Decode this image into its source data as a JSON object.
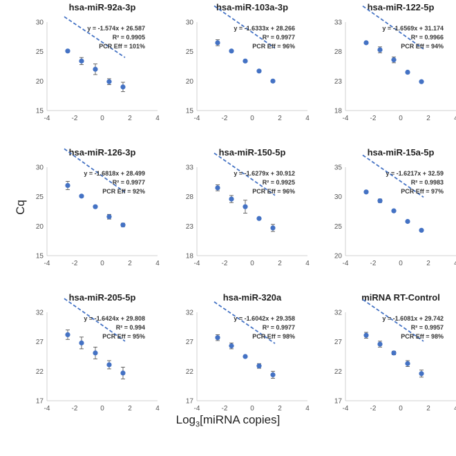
{
  "figure": {
    "ylabel": "Cq",
    "xlabel_prefix": "Log",
    "xlabel_sub": "3",
    "xlabel_suffix": "[miRNA copies]"
  },
  "chart_data": [
    {
      "type": "scatter",
      "title": "hsa-miR-92a-3p",
      "equation": "y = -1.574x + 26.587",
      "r2": "R² = 0.9905",
      "eff": "PCR Eff = 101%",
      "slope": -1.574,
      "intercept": 26.587,
      "xlim": [
        -4,
        4
      ],
      "ylim": [
        15,
        30
      ],
      "xticks": [
        -4,
        -2,
        0,
        2,
        4
      ],
      "yticks": [
        15,
        20,
        25,
        30
      ],
      "x": [
        -2.5,
        -1.5,
        -0.5,
        0.5,
        1.5
      ],
      "y": [
        25.1,
        23.4,
        22.0,
        19.9,
        19.0
      ],
      "err": [
        0.2,
        0.6,
        0.9,
        0.5,
        0.8
      ]
    },
    {
      "type": "scatter",
      "title": "hsa-miR-103a-3p",
      "equation": "y = -1.6333x + 28.266",
      "r2": "R² = 0.9977",
      "eff": "PCR Eff = 96%",
      "slope": -1.6333,
      "intercept": 28.266,
      "xlim": [
        -4,
        4
      ],
      "ylim": [
        15,
        30
      ],
      "xticks": [
        -4,
        -2,
        0,
        2,
        4
      ],
      "yticks": [
        15,
        20,
        25,
        30
      ],
      "x": [
        -2.5,
        -1.5,
        -0.5,
        0.5,
        1.5
      ],
      "y": [
        26.5,
        25.1,
        23.4,
        21.7,
        20.0
      ],
      "err": [
        0.5,
        0.1,
        0.1,
        0.1,
        0.1
      ]
    },
    {
      "type": "scatter",
      "title": "hsa-miR-122-5p",
      "equation": "y = -1.6569x + 31.174",
      "r2": "R² = 0.9966",
      "eff": "PCR Eff = 94%",
      "slope": -1.6569,
      "intercept": 31.174,
      "xlim": [
        -4,
        4
      ],
      "ylim": [
        18,
        33
      ],
      "xticks": [
        -4,
        -2,
        0,
        2,
        4
      ],
      "yticks": [
        18,
        23,
        28,
        33
      ],
      "x": [
        -2.5,
        -1.5,
        -0.5,
        0.5,
        1.5
      ],
      "y": [
        29.5,
        28.3,
        26.6,
        24.5,
        22.9
      ],
      "err": [
        0.2,
        0.5,
        0.5,
        0.2,
        0.1
      ]
    },
    {
      "type": "scatter",
      "title": "hsa-miR-126-3p",
      "equation": "y = -1.6818x + 28.499",
      "r2": "R² = 0.9977",
      "eff": "PCR Eff = 92%",
      "slope": -1.6818,
      "intercept": 28.499,
      "xlim": [
        -4,
        4
      ],
      "ylim": [
        15,
        30
      ],
      "xticks": [
        -4,
        -2,
        0,
        2,
        4
      ],
      "yticks": [
        15,
        20,
        25,
        30
      ],
      "x": [
        -2.5,
        -1.5,
        -0.5,
        0.5,
        1.5
      ],
      "y": [
        26.9,
        25.1,
        23.3,
        21.6,
        20.2
      ],
      "err": [
        0.7,
        0.1,
        0.2,
        0.4,
        0.3
      ]
    },
    {
      "type": "scatter",
      "title": "hsa-miR-150-5p",
      "equation": "y = -1.6279x + 30.912",
      "r2": "R² = 0.9925",
      "eff": "PCR Eff = 96%",
      "slope": -1.6279,
      "intercept": 30.912,
      "xlim": [
        -4,
        4
      ],
      "ylim": [
        18,
        33
      ],
      "xticks": [
        -4,
        -2,
        0,
        2,
        4
      ],
      "yticks": [
        18,
        23,
        28,
        33
      ],
      "x": [
        -2.5,
        -1.5,
        -0.5,
        0.5,
        1.5
      ],
      "y": [
        29.5,
        27.6,
        26.3,
        24.3,
        22.7
      ],
      "err": [
        0.5,
        0.6,
        1.1,
        0.2,
        0.6
      ]
    },
    {
      "type": "scatter",
      "title": "hsa-miR-15a-5p",
      "equation": "y = -1.6217x + 32.59",
      "r2": "R² = 0.9983",
      "eff": "PCR Eff = 97%",
      "slope": -1.6217,
      "intercept": 32.59,
      "xlim": [
        -4,
        4
      ],
      "ylim": [
        20,
        35
      ],
      "xticks": [
        -4,
        -2,
        0,
        2,
        4
      ],
      "yticks": [
        20,
        25,
        30,
        35
      ],
      "x": [
        -2.5,
        -1.5,
        -0.5,
        0.5,
        1.5
      ],
      "y": [
        30.8,
        29.3,
        27.6,
        25.8,
        24.3
      ],
      "err": [
        0.2,
        0.3,
        0.1,
        0.1,
        0.1
      ]
    },
    {
      "type": "scatter",
      "title": "hsa-miR-205-5p",
      "equation": "y = -1.6424x + 29.808",
      "r2": "R² = 0.994",
      "eff": "PCR Eff = 95%",
      "slope": -1.6424,
      "intercept": 29.808,
      "xlim": [
        -4,
        4
      ],
      "ylim": [
        17,
        32
      ],
      "xticks": [
        -4,
        -2,
        0,
        2,
        4
      ],
      "yticks": [
        17,
        22,
        27,
        32
      ],
      "x": [
        -2.5,
        -1.5,
        -0.5,
        0.5,
        1.5
      ],
      "y": [
        28.2,
        26.8,
        25.1,
        23.1,
        21.7
      ],
      "err": [
        0.8,
        1.0,
        1.0,
        0.7,
        1.0
      ]
    },
    {
      "type": "scatter",
      "title": "hsa-miR-320a",
      "equation": "y = -1.6042x + 29.358",
      "r2": "R² = 0.9977",
      "eff": "PCR Eff = 98%",
      "slope": -1.6042,
      "intercept": 29.358,
      "xlim": [
        -4,
        4
      ],
      "ylim": [
        17,
        32
      ],
      "xticks": [
        -4,
        -2,
        0,
        2,
        4
      ],
      "yticks": [
        17,
        22,
        27,
        32
      ],
      "x": [
        -2.5,
        -1.5,
        -0.5,
        0.5,
        1.5
      ],
      "y": [
        27.7,
        26.3,
        24.5,
        22.9,
        21.4
      ],
      "err": [
        0.5,
        0.5,
        0.2,
        0.4,
        0.6
      ]
    },
    {
      "type": "scatter",
      "title": "miRNA RT-Control",
      "equation": "y = -1.6081x + 29.742",
      "r2": "R² = 0.9957",
      "eff": "PCR Eff = 98%",
      "slope": -1.6081,
      "intercept": 29.742,
      "xlim": [
        -4,
        4
      ],
      "ylim": [
        17,
        32
      ],
      "xticks": [
        -4,
        -2,
        0,
        2,
        4
      ],
      "yticks": [
        17,
        22,
        27,
        32
      ],
      "x": [
        -2.5,
        -1.5,
        -0.5,
        0.5,
        1.5
      ],
      "y": [
        28.1,
        26.6,
        25.1,
        23.3,
        21.6
      ],
      "err": [
        0.5,
        0.5,
        0.3,
        0.5,
        0.6
      ]
    }
  ]
}
